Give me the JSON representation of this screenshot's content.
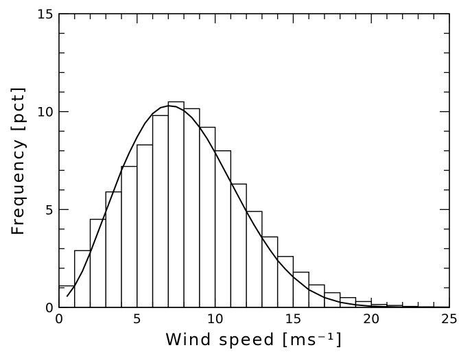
{
  "chart_data": {
    "type": "bar",
    "title": "",
    "xlabel": "Wind speed [ms⁻¹]",
    "ylabel": "Frequency [pct]",
    "xlim": [
      0,
      25
    ],
    "ylim": [
      0,
      15
    ],
    "x_ticks": [
      "0",
      "5",
      "10",
      "15",
      "20",
      "25"
    ],
    "y_ticks": [
      "0",
      "5",
      "10",
      "15"
    ],
    "bin_width": 1,
    "bins": [
      {
        "x0": 0,
        "value": 1.1
      },
      {
        "x0": 1,
        "value": 2.9
      },
      {
        "x0": 2,
        "value": 4.5
      },
      {
        "x0": 3,
        "value": 5.9
      },
      {
        "x0": 4,
        "value": 7.2
      },
      {
        "x0": 5,
        "value": 8.3
      },
      {
        "x0": 6,
        "value": 9.8
      },
      {
        "x0": 7,
        "value": 10.5
      },
      {
        "x0": 8,
        "value": 10.15
      },
      {
        "x0": 9,
        "value": 9.2
      },
      {
        "x0": 10,
        "value": 8.0
      },
      {
        "x0": 11,
        "value": 6.3
      },
      {
        "x0": 12,
        "value": 4.9
      },
      {
        "x0": 13,
        "value": 3.6
      },
      {
        "x0": 14,
        "value": 2.6
      },
      {
        "x0": 15,
        "value": 1.8
      },
      {
        "x0": 16,
        "value": 1.15
      },
      {
        "x0": 17,
        "value": 0.75
      },
      {
        "x0": 18,
        "value": 0.5
      },
      {
        "x0": 19,
        "value": 0.3
      },
      {
        "x0": 20,
        "value": 0.15
      },
      {
        "x0": 21,
        "value": 0.1
      },
      {
        "x0": 22,
        "value": 0.05
      },
      {
        "x0": 23,
        "value": 0.03
      },
      {
        "x0": 24,
        "value": 0.02
      }
    ],
    "fit_curve": {
      "x": [
        0.5,
        1,
        1.5,
        2,
        2.5,
        3,
        3.5,
        4,
        4.5,
        5,
        5.5,
        6,
        6.5,
        7,
        7.5,
        8,
        8.5,
        9,
        9.5,
        10,
        10.5,
        11,
        11.5,
        12,
        12.5,
        13,
        13.5,
        14,
        14.5,
        15,
        16,
        17,
        18,
        19,
        20,
        21,
        22,
        23,
        24,
        25
      ],
      "y": [
        0.55,
        1.1,
        1.85,
        2.8,
        3.85,
        4.9,
        5.95,
        7.0,
        7.9,
        8.7,
        9.4,
        9.9,
        10.2,
        10.3,
        10.25,
        10.05,
        9.7,
        9.2,
        8.6,
        7.9,
        7.15,
        6.4,
        5.65,
        4.9,
        4.2,
        3.55,
        2.95,
        2.4,
        1.95,
        1.55,
        0.9,
        0.5,
        0.26,
        0.13,
        0.06,
        0.03,
        0.015,
        0.007,
        0.003,
        0.001
      ]
    },
    "grid": false,
    "legend": "none"
  }
}
